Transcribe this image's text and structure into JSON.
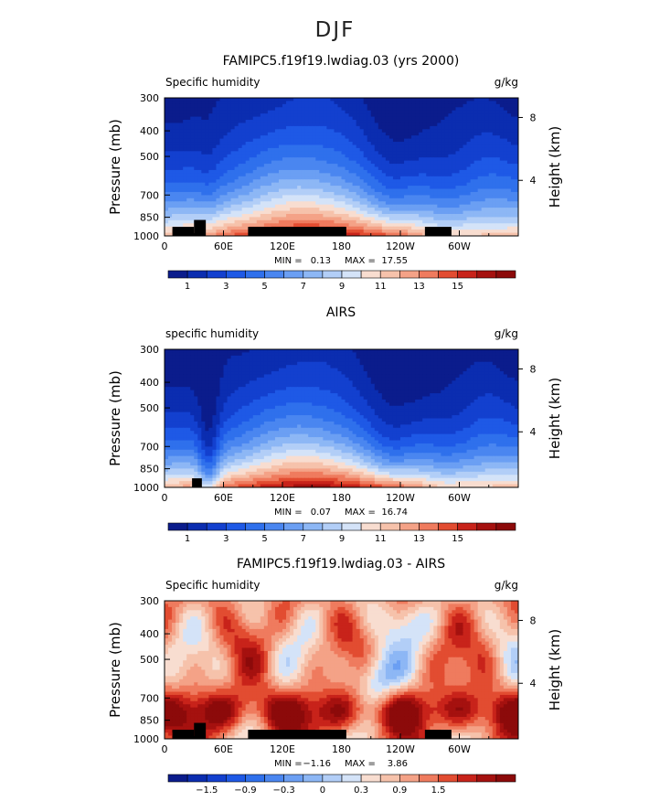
{
  "page_title": "DJF",
  "chart_data": [
    {
      "type": "heatmap",
      "title": "FAMIPC5.f19f19.lwdiag.03 (yrs 2000)",
      "field_label": "Specific humidity",
      "units": "g/kg",
      "ylabel": "Pressure (mb)",
      "y2label": "Height (km)",
      "x_ticks": [
        "0",
        "60E",
        "120E",
        "180",
        "120W",
        "60W"
      ],
      "x_tick_lon": [
        0,
        60,
        120,
        180,
        240,
        300
      ],
      "xlim": [
        0,
        360
      ],
      "y_ticks": [
        "300",
        "400",
        "500",
        "700",
        "850",
        "1000"
      ],
      "y_tick_p": [
        300,
        400,
        500,
        700,
        850,
        1000
      ],
      "ylim": [
        300,
        1000
      ],
      "y2_ticks": [
        "8",
        "4"
      ],
      "y2_tick_p": [
        356,
        616
      ],
      "min_label": "MIN =",
      "min": "0.13",
      "max_label": "MAX =",
      "max": "17.55",
      "colorbar_labels": [
        "1",
        "3",
        "5",
        "7",
        "9",
        "11",
        "13",
        "15"
      ],
      "colorbar_label_index": [
        1,
        3,
        5,
        7,
        9,
        11,
        13,
        15
      ],
      "colorbar_colors": [
        "#0b1c8c",
        "#0b2db0",
        "#1340cf",
        "#1e59e6",
        "#2f70ec",
        "#4a86f0",
        "#6b9ff3",
        "#8db7f5",
        "#b2cef7",
        "#d4e3f8",
        "#f8ddd0",
        "#f6c2ab",
        "#f4a287",
        "#ef7b5e",
        "#e24c31",
        "#c8231a",
        "#a5110f",
        "#8c0a0a"
      ],
      "mode": "model",
      "topography": [
        [
          8,
          30,
          924,
          1000
        ],
        [
          30,
          42,
          870,
          1000
        ],
        [
          85,
          185,
          924,
          1000
        ],
        [
          265,
          292,
          924,
          1000
        ]
      ]
    },
    {
      "type": "heatmap",
      "title": "AIRS",
      "field_label": "specific humidity",
      "units": "g/kg",
      "ylabel": "Pressure (mb)",
      "y2label": "Height (km)",
      "x_ticks": [
        "0",
        "60E",
        "120E",
        "180",
        "120W",
        "60W"
      ],
      "x_tick_lon": [
        0,
        60,
        120,
        180,
        240,
        300
      ],
      "xlim": [
        0,
        360
      ],
      "y_ticks": [
        "300",
        "400",
        "500",
        "700",
        "850",
        "1000"
      ],
      "y_tick_p": [
        300,
        400,
        500,
        700,
        850,
        1000
      ],
      "ylim": [
        300,
        1000
      ],
      "y2_ticks": [
        "8",
        "4"
      ],
      "y2_tick_p": [
        356,
        616
      ],
      "min_label": "MIN =",
      "min": "0.07",
      "max_label": "MAX =",
      "max": "16.74",
      "colorbar_labels": [
        "1",
        "3",
        "5",
        "7",
        "9",
        "11",
        "13",
        "15"
      ],
      "colorbar_label_index": [
        1,
        3,
        5,
        7,
        9,
        11,
        13,
        15
      ],
      "colorbar_colors": [
        "#0b1c8c",
        "#0b2db0",
        "#1340cf",
        "#1e59e6",
        "#2f70ec",
        "#4a86f0",
        "#6b9ff3",
        "#8db7f5",
        "#b2cef7",
        "#d4e3f8",
        "#f8ddd0",
        "#f6c2ab",
        "#f4a287",
        "#ef7b5e",
        "#e24c31",
        "#c8231a",
        "#a5110f",
        "#8c0a0a"
      ],
      "mode": "obs",
      "topography": [
        [
          28,
          38,
          924,
          1000
        ]
      ]
    },
    {
      "type": "heatmap",
      "title": "FAMIPC5.f19f19.lwdiag.03 - AIRS",
      "field_label": "Specific humidity",
      "units": "g/kg",
      "ylabel": "Pressure (mb)",
      "y2label": "Height (km)",
      "x_ticks": [
        "0",
        "60E",
        "120E",
        "180",
        "120W",
        "60W"
      ],
      "x_tick_lon": [
        0,
        60,
        120,
        180,
        240,
        300
      ],
      "xlim": [
        0,
        360
      ],
      "y_ticks": [
        "300",
        "400",
        "500",
        "700",
        "850",
        "1000"
      ],
      "y_tick_p": [
        300,
        400,
        500,
        700,
        850,
        1000
      ],
      "ylim": [
        300,
        1000
      ],
      "y2_ticks": [
        "8",
        "4"
      ],
      "y2_tick_p": [
        356,
        616
      ],
      "min_label": "MIN =",
      "min": "−1.16",
      "max_label": "MAX =",
      "max": "3.86",
      "colorbar_labels": [
        "−1.5",
        "−0.9",
        "−0.3",
        "0",
        "0.3",
        "0.9",
        "1.5"
      ],
      "colorbar_label_index": [
        2,
        4,
        6,
        8,
        10,
        12,
        14
      ],
      "colorbar_colors": [
        "#0b1c8c",
        "#0b2db0",
        "#1340cf",
        "#1e59e6",
        "#2f70ec",
        "#4a86f0",
        "#6b9ff3",
        "#8db7f5",
        "#b2cef7",
        "#d4e3f8",
        "#f8ddd0",
        "#f6c2ab",
        "#f4a287",
        "#ef7b5e",
        "#e24c31",
        "#c8231a",
        "#a5110f",
        "#8c0a0a"
      ],
      "mode": "diff",
      "topography": [
        [
          8,
          30,
          924,
          1000
        ],
        [
          30,
          42,
          870,
          1000
        ],
        [
          85,
          185,
          924,
          1000
        ],
        [
          265,
          292,
          924,
          1000
        ]
      ]
    }
  ]
}
